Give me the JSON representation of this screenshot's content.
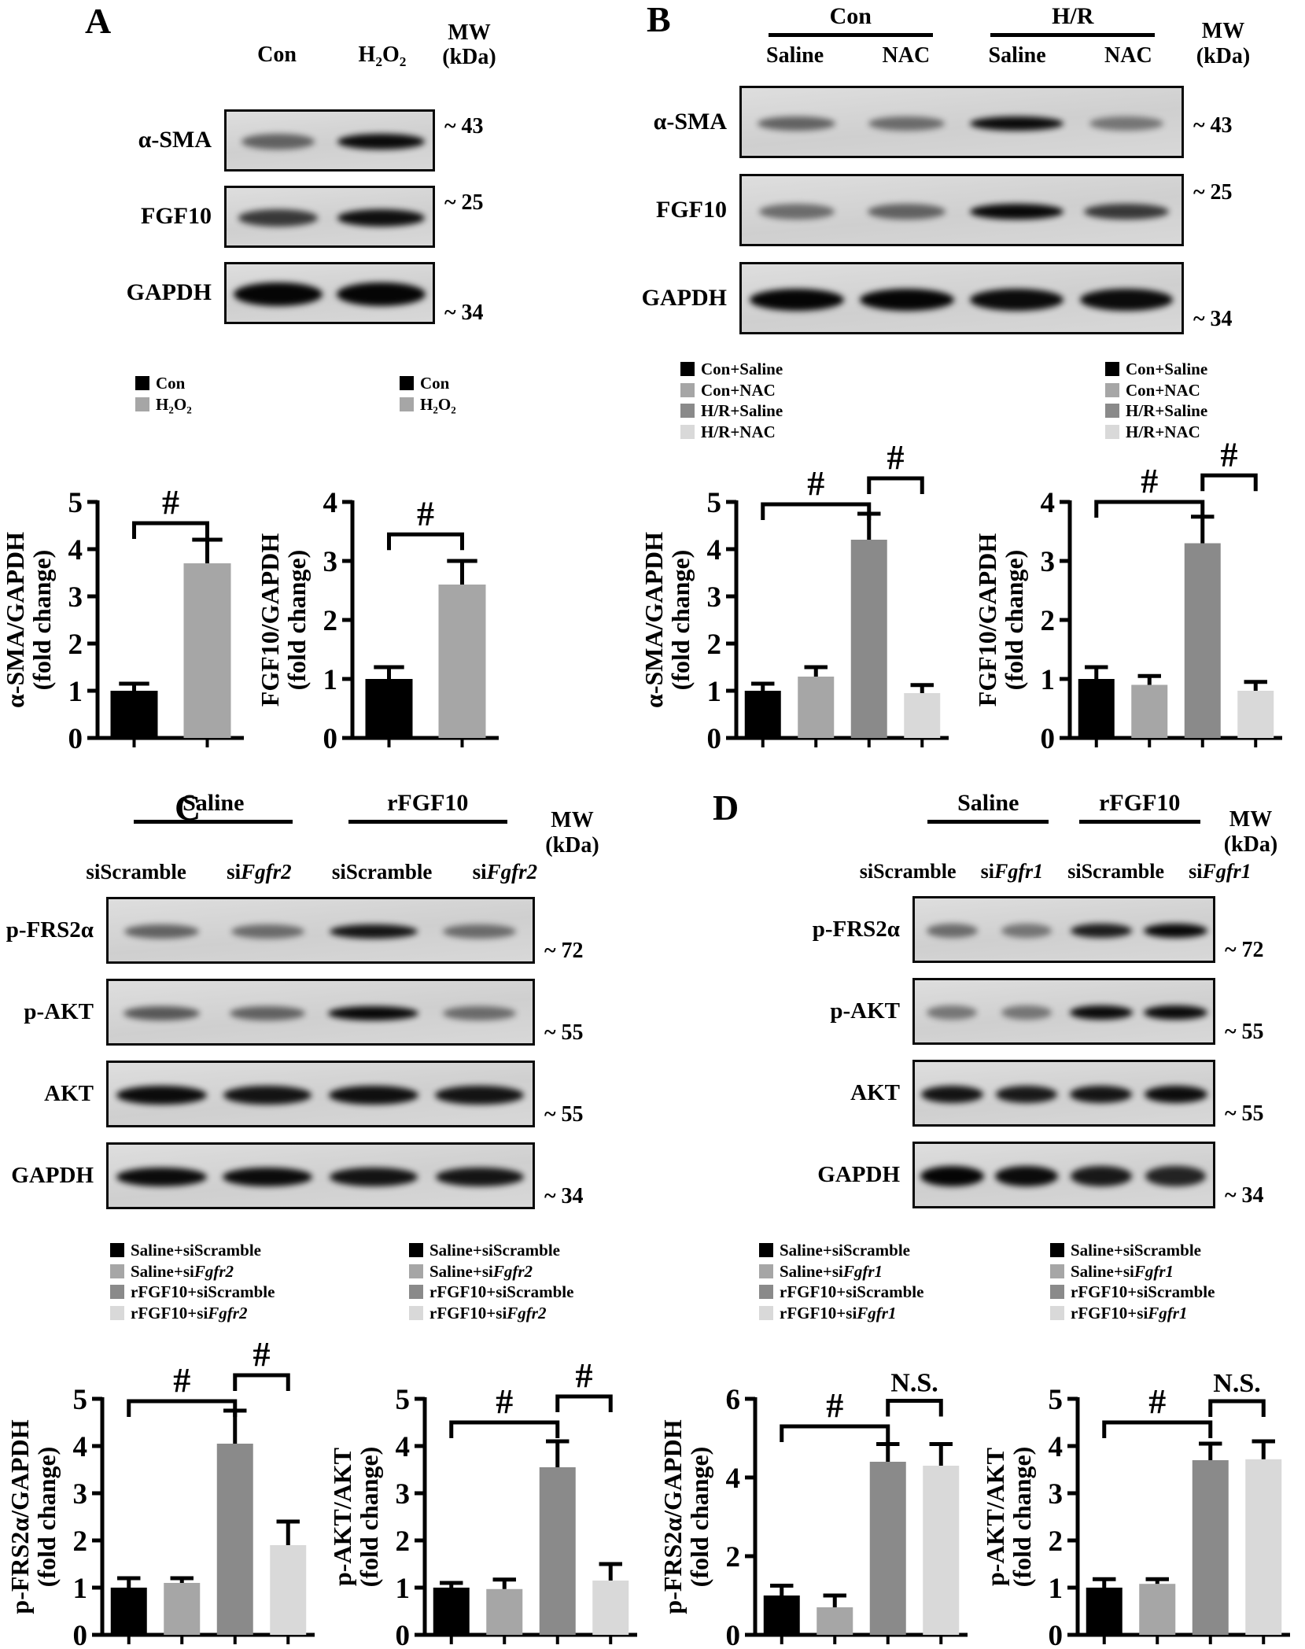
{
  "chart_data": [
    {
      "name": "a-sma-gapdh-A",
      "panel": "A",
      "type": "bar",
      "ylabel_lines": [
        "α-SMA/GAPDH",
        "(fold change)"
      ],
      "ylim": [
        0,
        5
      ],
      "yticks": [
        0,
        1,
        2,
        3,
        4,
        5
      ],
      "categories": [
        "Con",
        "H2O2"
      ],
      "values": [
        1.0,
        3.7
      ],
      "errors_top": [
        1.15,
        4.2
      ],
      "colors": [
        "#000000",
        "#a6a6a6"
      ],
      "sig": [
        {
          "from": 0,
          "to": 1,
          "label": "#",
          "y": 4.55
        }
      ]
    },
    {
      "name": "fgf10-gapdh-A",
      "panel": "A",
      "type": "bar",
      "ylabel_lines": [
        "FGF10/GAPDH",
        "(fold change)"
      ],
      "ylim": [
        0,
        4
      ],
      "yticks": [
        0,
        1,
        2,
        3,
        4
      ],
      "categories": [
        "Con",
        "H2O2"
      ],
      "values": [
        1.0,
        2.6
      ],
      "errors_top": [
        1.2,
        3.0
      ],
      "colors": [
        "#000000",
        "#a6a6a6"
      ],
      "sig": [
        {
          "from": 0,
          "to": 1,
          "label": "#",
          "y": 3.45
        }
      ]
    },
    {
      "name": "a-sma-gapdh-B",
      "panel": "B",
      "type": "bar",
      "ylabel_lines": [
        "α-SMA/GAPDH",
        "(fold change)"
      ],
      "ylim": [
        0,
        5
      ],
      "yticks": [
        0,
        1,
        2,
        3,
        4,
        5
      ],
      "categories": [
        "Con+Saline",
        "Con+NAC",
        "H/R+Saline",
        "H/R+NAC"
      ],
      "values": [
        1.0,
        1.3,
        4.2,
        0.95
      ],
      "errors_top": [
        1.15,
        1.5,
        4.75,
        1.12
      ],
      "colors": [
        "#000000",
        "#a6a6a6",
        "#8a8a8a",
        "#d9d9d9"
      ],
      "sig": [
        {
          "from": 0,
          "to": 2,
          "label": "#",
          "y": 4.95
        },
        {
          "from": 2,
          "to": 3,
          "label": "#",
          "y": 5.5
        }
      ]
    },
    {
      "name": "fgf10-gapdh-B",
      "panel": "B",
      "type": "bar",
      "ylabel_lines": [
        "FGF10/GAPDH",
        "(fold change)"
      ],
      "ylim": [
        0,
        4
      ],
      "yticks": [
        0,
        1,
        2,
        3,
        4
      ],
      "categories": [
        "Con+Saline",
        "Con+NAC",
        "H/R+Saline",
        "H/R+NAC"
      ],
      "values": [
        1.0,
        0.9,
        3.3,
        0.8
      ],
      "errors_top": [
        1.2,
        1.05,
        3.75,
        0.95
      ],
      "colors": [
        "#000000",
        "#a6a6a6",
        "#8a8a8a",
        "#d9d9d9"
      ],
      "sig": [
        {
          "from": 0,
          "to": 2,
          "label": "#",
          "y": 4.0
        },
        {
          "from": 2,
          "to": 3,
          "label": "#",
          "y": 4.45
        }
      ]
    },
    {
      "name": "p-frs2a-gapdh-C",
      "panel": "C",
      "type": "bar",
      "ylabel_lines": [
        "p-FRS2α/GAPDH",
        "(fold change)"
      ],
      "ylim": [
        0,
        5
      ],
      "yticks": [
        0,
        1,
        2,
        3,
        4,
        5
      ],
      "categories": [
        "Saline+siScramble",
        "Saline+siFgfr2",
        "rFGF10+siScramble",
        "rFGF10+siFgfr2"
      ],
      "values": [
        1.0,
        1.1,
        4.05,
        1.9
      ],
      "errors_top": [
        1.2,
        1.2,
        4.75,
        2.4
      ],
      "colors": [
        "#000000",
        "#a6a6a6",
        "#8a8a8a",
        "#d9d9d9"
      ],
      "sig": [
        {
          "from": 0,
          "to": 2,
          "label": "#",
          "y": 4.95
        },
        {
          "from": 2,
          "to": 3,
          "label": "#",
          "y": 5.5
        }
      ]
    },
    {
      "name": "p-akt-akt-C",
      "panel": "C",
      "type": "bar",
      "ylabel_lines": [
        "p-AKT/AKT",
        "(fold change)"
      ],
      "ylim": [
        0,
        5
      ],
      "yticks": [
        0,
        1,
        2,
        3,
        4,
        5
      ],
      "categories": [
        "Saline+siScramble",
        "Saline+siFgfr2",
        "rFGF10+siScramble",
        "rFGF10+siFgfr2"
      ],
      "values": [
        1.0,
        0.97,
        3.55,
        1.15
      ],
      "errors_top": [
        1.1,
        1.17,
        4.1,
        1.5
      ],
      "colors": [
        "#000000",
        "#a6a6a6",
        "#8a8a8a",
        "#d9d9d9"
      ],
      "sig": [
        {
          "from": 0,
          "to": 2,
          "label": "#",
          "y": 4.5
        },
        {
          "from": 2,
          "to": 3,
          "label": "#",
          "y": 5.05
        }
      ]
    },
    {
      "name": "p-frs2a-gapdh-D",
      "panel": "D",
      "type": "bar",
      "ylabel_lines": [
        "p-FRS2α/GAPDH",
        "(fold change)"
      ],
      "ylim": [
        0,
        6
      ],
      "yticks": [
        0,
        2,
        4,
        6
      ],
      "categories": [
        "Saline+siScramble",
        "Saline+siFgfr1",
        "rFGF10+siScramble",
        "rFGF10+siFgfr1"
      ],
      "values": [
        1.0,
        0.7,
        4.4,
        4.3
      ],
      "errors_top": [
        1.25,
        1.0,
        4.85,
        4.85
      ],
      "colors": [
        "#000000",
        "#a6a6a6",
        "#8a8a8a",
        "#d9d9d9"
      ],
      "sig": [
        {
          "from": 0,
          "to": 2,
          "label": "#",
          "y": 5.3
        },
        {
          "from": 2,
          "to": 3,
          "label": "N.S.",
          "y": 5.95
        }
      ]
    },
    {
      "name": "p-akt-akt-D",
      "panel": "D",
      "type": "bar",
      "ylabel_lines": [
        "p-AKT/AKT",
        "(fold change)"
      ],
      "ylim": [
        0,
        5
      ],
      "yticks": [
        0,
        1,
        2,
        3,
        4,
        5
      ],
      "categories": [
        "Saline+siScramble",
        "Saline+siFgfr1",
        "rFGF10+siScramble",
        "rFGF10+siFgfr1"
      ],
      "values": [
        1.0,
        1.08,
        3.7,
        3.72
      ],
      "errors_top": [
        1.18,
        1.18,
        4.05,
        4.1
      ],
      "colors": [
        "#000000",
        "#a6a6a6",
        "#8a8a8a",
        "#d9d9d9"
      ],
      "sig": [
        {
          "from": 0,
          "to": 2,
          "label": "#",
          "y": 4.5
        },
        {
          "from": 2,
          "to": 3,
          "label": "N.S.",
          "y": 4.95
        }
      ]
    }
  ],
  "panels": {
    "a": {
      "letter": "A",
      "blot": {
        "groups": [],
        "lanes": [
          [
            {
              "t": "Con"
            }
          ],
          [
            {
              "t": "H"
            },
            {
              "t": "2",
              "sub": true
            },
            {
              "t": "O"
            },
            {
              "t": "2",
              "sub": true
            }
          ]
        ],
        "mw_header": [
          "MW",
          "(kDa)"
        ],
        "rows": [
          {
            "label": "α-SMA",
            "mw": "~ 43",
            "mw_pos": "top",
            "band_h": 20,
            "bands": [
              0.55,
              0.97
            ]
          },
          {
            "label": "FGF10",
            "mw": "~ 25",
            "mw_pos": "top",
            "band_h": 22,
            "bands": [
              0.75,
              0.95
            ]
          },
          {
            "label": "GAPDH",
            "mw": "~ 34",
            "mw_pos": "low",
            "band_h": 30,
            "bands": [
              1,
              1
            ]
          }
        ]
      },
      "legends": [
        [
          {
            "color": "#000000",
            "parts": [
              {
                "t": "Con"
              }
            ]
          },
          {
            "color": "#a6a6a6",
            "parts": [
              {
                "t": "H"
              },
              {
                "t": "2",
                "sub": true
              },
              {
                "t": "O"
              },
              {
                "t": "2",
                "sub": true
              }
            ]
          }
        ],
        [
          {
            "color": "#000000",
            "parts": [
              {
                "t": "Con"
              }
            ]
          },
          {
            "color": "#a6a6a6",
            "parts": [
              {
                "t": "H"
              },
              {
                "t": "2",
                "sub": true
              },
              {
                "t": "O"
              },
              {
                "t": "2",
                "sub": true
              }
            ]
          }
        ]
      ]
    },
    "b": {
      "letter": "B",
      "blot": {
        "groups": [
          {
            "label": "Con"
          },
          {
            "label": "H/R"
          }
        ],
        "lanes": [
          [
            {
              "t": "Saline"
            }
          ],
          [
            {
              "t": "NAC"
            }
          ],
          [
            {
              "t": "Saline"
            }
          ],
          [
            {
              "t": "NAC"
            }
          ]
        ],
        "mw_header": [
          "MW",
          "(kDa)"
        ],
        "rows": [
          {
            "label": "α-SMA",
            "mw": "~ 43",
            "mw_pos": "mid",
            "band_h": 18,
            "bands": [
              0.55,
              0.5,
              0.97,
              0.45
            ]
          },
          {
            "label": "FGF10",
            "mw": "~ 25",
            "mw_pos": "top",
            "band_h": 20,
            "bands": [
              0.5,
              0.55,
              0.98,
              0.75
            ]
          },
          {
            "label": "GAPDH",
            "mw": "~ 34",
            "mw_pos": "low",
            "band_h": 28,
            "bands": [
              1,
              1,
              0.97,
              0.97
            ]
          }
        ]
      },
      "legends": [
        [
          {
            "color": "#000000",
            "parts": [
              {
                "t": "Con+Saline"
              }
            ]
          },
          {
            "color": "#a6a6a6",
            "parts": [
              {
                "t": "Con+NAC"
              }
            ]
          },
          {
            "color": "#8a8a8a",
            "parts": [
              {
                "t": "H/R+Saline"
              }
            ]
          },
          {
            "color": "#d9d9d9",
            "parts": [
              {
                "t": "H/R+NAC"
              }
            ]
          }
        ],
        [
          {
            "color": "#000000",
            "parts": [
              {
                "t": "Con+Saline"
              }
            ]
          },
          {
            "color": "#a6a6a6",
            "parts": [
              {
                "t": "Con+NAC"
              }
            ]
          },
          {
            "color": "#8a8a8a",
            "parts": [
              {
                "t": "H/R+Saline"
              }
            ]
          },
          {
            "color": "#d9d9d9",
            "parts": [
              {
                "t": "H/R+NAC"
              }
            ]
          }
        ]
      ]
    },
    "c": {
      "letter": "C",
      "blot": {
        "groups": [
          {
            "label": "Saline"
          },
          {
            "label": "rFGF10"
          }
        ],
        "lanes": [
          [
            {
              "t": "siScramble"
            }
          ],
          [
            {
              "t": "si"
            },
            {
              "t": "Fgfr2",
              "i": true
            }
          ],
          [
            {
              "t": "siScramble"
            }
          ],
          [
            {
              "t": "si"
            },
            {
              "t": "Fgfr2",
              "i": true
            }
          ]
        ],
        "mw_header": [
          "MW",
          "(kDa)"
        ],
        "rows": [
          {
            "label": "p-FRS2α",
            "mw": "~ 72",
            "mw_pos": "low",
            "band_h": 18,
            "bands": [
              0.55,
              0.5,
              0.92,
              0.5
            ]
          },
          {
            "label": "p-AKT",
            "mw": "~ 55",
            "mw_pos": "low",
            "band_h": 18,
            "bands": [
              0.6,
              0.55,
              0.98,
              0.5
            ]
          },
          {
            "label": "AKT",
            "mw": "~ 55",
            "mw_pos": "low",
            "band_h": 24,
            "bands": [
              0.97,
              0.93,
              0.95,
              0.93
            ]
          },
          {
            "label": "GAPDH",
            "mw": "~ 34",
            "mw_pos": "low",
            "band_h": 24,
            "bands": [
              0.97,
              0.97,
              0.93,
              0.92
            ]
          }
        ]
      },
      "legends": [
        [
          {
            "color": "#000000",
            "parts": [
              {
                "t": "Saline+siScramble"
              }
            ]
          },
          {
            "color": "#a6a6a6",
            "parts": [
              {
                "t": "Saline+si"
              },
              {
                "t": "Fgfr2",
                "i": true
              }
            ]
          },
          {
            "color": "#8a8a8a",
            "parts": [
              {
                "t": "rFGF10+siScramble"
              }
            ]
          },
          {
            "color": "#d9d9d9",
            "parts": [
              {
                "t": "rFGF10+si"
              },
              {
                "t": "Fgfr2",
                "i": true
              }
            ]
          }
        ],
        [
          {
            "color": "#000000",
            "parts": [
              {
                "t": "Saline+siScramble"
              }
            ]
          },
          {
            "color": "#a6a6a6",
            "parts": [
              {
                "t": "Saline+si"
              },
              {
                "t": "Fgfr2",
                "i": true
              }
            ]
          },
          {
            "color": "#8a8a8a",
            "parts": [
              {
                "t": "rFGF10+siScramble"
              }
            ]
          },
          {
            "color": "#d9d9d9",
            "parts": [
              {
                "t": "rFGF10+si"
              },
              {
                "t": "Fgfr2",
                "i": true
              }
            ]
          }
        ]
      ]
    },
    "d": {
      "letter": "D",
      "blot": {
        "groups": [
          {
            "label": "Saline"
          },
          {
            "label": "rFGF10"
          }
        ],
        "lanes": [
          [
            {
              "t": "siScramble"
            }
          ],
          [
            {
              "t": "si"
            },
            {
              "t": "Fgfr1",
              "i": true
            }
          ],
          [
            {
              "t": "siScramble"
            }
          ],
          [
            {
              "t": "si"
            },
            {
              "t": "Fgfr1",
              "i": true
            }
          ]
        ],
        "mw_header": [
          "MW",
          "(kDa)"
        ],
        "rows": [
          {
            "label": "p-FRS2α",
            "mw": "~ 72",
            "mw_pos": "low",
            "band_h": 18,
            "bands": [
              0.5,
              0.45,
              0.88,
              0.98
            ]
          },
          {
            "label": "p-AKT",
            "mw": "~ 55",
            "mw_pos": "low",
            "band_h": 18,
            "bands": [
              0.45,
              0.45,
              0.97,
              0.97
            ]
          },
          {
            "label": "AKT",
            "mw": "~ 55",
            "mw_pos": "low",
            "band_h": 22,
            "bands": [
              0.93,
              0.9,
              0.92,
              0.96
            ]
          },
          {
            "label": "GAPDH",
            "mw": "~ 34",
            "mw_pos": "low",
            "band_h": 26,
            "bands": [
              1,
              0.97,
              0.9,
              0.85
            ]
          }
        ]
      },
      "legends": [
        [
          {
            "color": "#000000",
            "parts": [
              {
                "t": "Saline+siScramble"
              }
            ]
          },
          {
            "color": "#a6a6a6",
            "parts": [
              {
                "t": "Saline+si"
              },
              {
                "t": "Fgfr1",
                "i": true
              }
            ]
          },
          {
            "color": "#8a8a8a",
            "parts": [
              {
                "t": "rFGF10+siScramble"
              }
            ]
          },
          {
            "color": "#d9d9d9",
            "parts": [
              {
                "t": "rFGF10+si"
              },
              {
                "t": "Fgfr1",
                "i": true
              }
            ]
          }
        ],
        [
          {
            "color": "#000000",
            "parts": [
              {
                "t": "Saline+siScramble"
              }
            ]
          },
          {
            "color": "#a6a6a6",
            "parts": [
              {
                "t": "Saline+si"
              },
              {
                "t": "Fgfr1",
                "i": true
              }
            ]
          },
          {
            "color": "#8a8a8a",
            "parts": [
              {
                "t": "rFGF10+siScramble"
              }
            ]
          },
          {
            "color": "#d9d9d9",
            "parts": [
              {
                "t": "rFGF10+si"
              },
              {
                "t": "Fgfr1",
                "i": true
              }
            ]
          }
        ]
      ]
    }
  }
}
